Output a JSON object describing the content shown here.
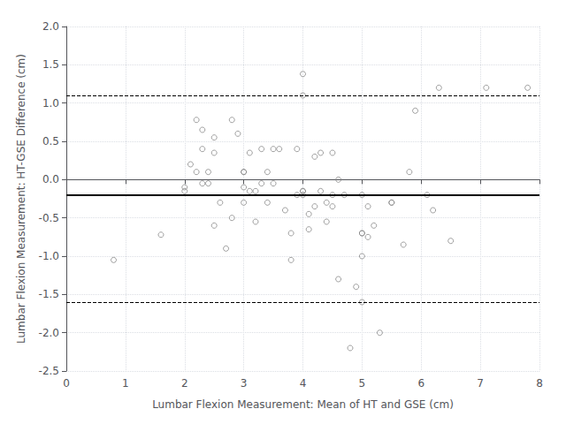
{
  "chart_data": {
    "type": "scatter",
    "xlabel": "Lumbar Flexion Measurement: Mean of HT and GSE (cm)",
    "ylabel": "Lumbar Flexion Measurement: HT-GSE Difference (cm)",
    "xlim": [
      0,
      8
    ],
    "ylim": [
      -2.5,
      2.0
    ],
    "xticks": [
      0,
      1,
      2,
      3,
      4,
      5,
      6,
      7,
      8
    ],
    "yticks": [
      -2.5,
      {
        "value": -2,
        "label": "-2.0"
      },
      -1.5,
      {
        "value": -1,
        "label": "-1.0"
      },
      -0.5,
      {
        "value": 0,
        "label": "0.0"
      },
      0.5,
      {
        "value": 1,
        "label": "1.0"
      },
      1.5,
      {
        "value": 2,
        "label": "2.0"
      }
    ],
    "grid": true,
    "color": "#888888",
    "marker": "open circle",
    "reference_lines": [
      {
        "y": -0.2,
        "color": "#000000",
        "line_style": "solid"
      },
      {
        "y": 1.1,
        "color": "#000000",
        "line_style": "dashed"
      },
      {
        "y": -1.6,
        "color": "#000000",
        "line_style": "dashed"
      }
    ],
    "x": [
      0.8,
      1.6,
      2.0,
      2.0,
      2.1,
      2.2,
      2.2,
      2.3,
      2.3,
      2.3,
      2.4,
      2.4,
      2.5,
      2.5,
      2.5,
      2.6,
      2.7,
      2.8,
      2.8,
      2.9,
      3.0,
      3.0,
      3.0,
      3.0,
      3.1,
      3.1,
      3.2,
      3.2,
      3.3,
      3.3,
      3.4,
      3.4,
      3.5,
      3.5,
      3.6,
      3.7,
      3.8,
      3.8,
      3.9,
      3.9,
      4.0,
      4.0,
      4.0,
      4.0,
      4.0,
      4.1,
      4.1,
      4.2,
      4.2,
      4.3,
      4.3,
      4.4,
      4.4,
      4.5,
      4.5,
      4.5,
      4.6,
      4.6,
      4.7,
      4.8,
      4.9,
      5.0,
      5.0,
      5.0,
      5.0,
      5.0,
      5.1,
      5.1,
      5.2,
      5.3,
      5.5,
      5.5,
      5.7,
      5.8,
      5.9,
      6.1,
      6.2,
      6.3,
      6.5,
      7.1,
      7.8
    ],
    "values": [
      -1.05,
      -0.72,
      -0.15,
      -0.1,
      0.2,
      0.1,
      0.78,
      0.65,
      0.4,
      -0.05,
      -0.05,
      0.1,
      -0.6,
      0.55,
      0.35,
      -0.3,
      -0.9,
      0.78,
      -0.5,
      0.6,
      -0.1,
      0.1,
      0.1,
      -0.3,
      -0.15,
      0.35,
      -0.55,
      -0.15,
      0.4,
      -0.05,
      0.1,
      -0.3,
      -0.05,
      0.4,
      0.4,
      -0.4,
      -1.05,
      -0.7,
      -0.2,
      0.4,
      -0.15,
      -0.2,
      1.38,
      1.1,
      -0.15,
      -0.45,
      -0.65,
      -0.35,
      0.3,
      -0.15,
      0.35,
      -0.55,
      -0.3,
      -0.35,
      0.35,
      -0.2,
      -1.3,
      0.0,
      -0.2,
      -2.2,
      -1.4,
      -0.7,
      -1.0,
      -0.2,
      -1.6,
      -0.7,
      -0.75,
      -0.35,
      -0.6,
      -2.0,
      -0.3,
      -0.3,
      -0.85,
      0.1,
      0.9,
      -0.2,
      -0.4,
      1.2,
      -0.8,
      1.2,
      1.2
    ]
  }
}
